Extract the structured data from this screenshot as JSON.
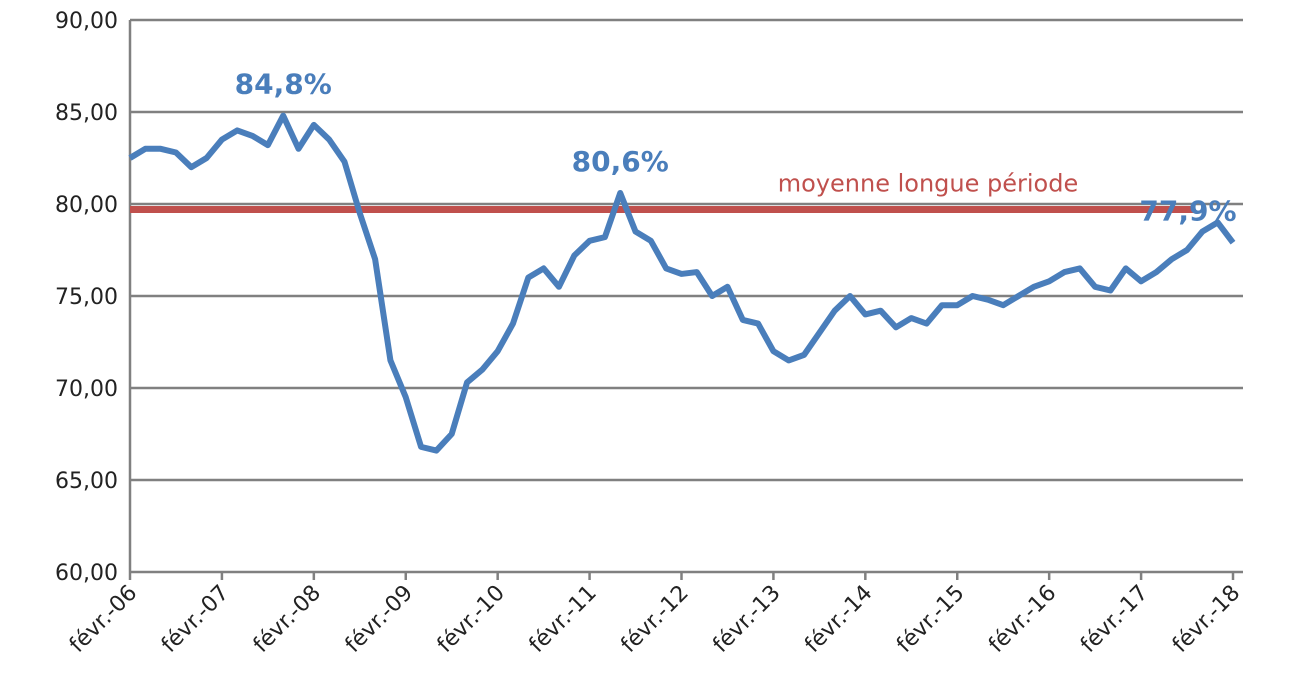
{
  "chart_data": {
    "type": "line",
    "categories": [
      "févr.-06",
      null,
      null,
      null,
      null,
      null,
      "févr.-07",
      null,
      null,
      null,
      null,
      null,
      "févr.-08",
      null,
      null,
      null,
      null,
      null,
      "févr.-09",
      null,
      null,
      null,
      null,
      null,
      "févr.-10",
      null,
      null,
      null,
      null,
      null,
      "févr.-11",
      null,
      null,
      null,
      null,
      null,
      "févr.-12",
      null,
      null,
      null,
      null,
      null,
      "févr.-13",
      null,
      null,
      null,
      null,
      null,
      "févr.-14",
      null,
      null,
      null,
      null,
      null,
      "févr.-15",
      null,
      null,
      null,
      null,
      null,
      "févr.-16",
      null,
      null,
      null,
      null,
      null,
      "févr.-17",
      null,
      null,
      null,
      null,
      null,
      "févr.-18"
    ],
    "series": [
      {
        "color": "#4a7ebb",
        "values": [
          82.5,
          83.0,
          83.0,
          82.8,
          82.0,
          82.5,
          83.5,
          84.0,
          83.7,
          83.2,
          84.8,
          83.0,
          84.3,
          83.5,
          82.3,
          79.5,
          77.0,
          71.5,
          69.5,
          66.8,
          66.6,
          67.5,
          70.3,
          71.0,
          72.0,
          73.5,
          76.0,
          76.5,
          75.5,
          77.2,
          78.0,
          78.2,
          80.6,
          78.5,
          78.0,
          76.5,
          76.2,
          76.3,
          75.0,
          75.5,
          73.7,
          73.5,
          72.0,
          71.5,
          71.8,
          73.0,
          74.2,
          75.0,
          74.0,
          74.2,
          73.3,
          73.8,
          73.5,
          74.5,
          74.5,
          75.0,
          74.8,
          74.5,
          75.0,
          75.5,
          75.8,
          76.3,
          76.5,
          75.5,
          75.3,
          76.5,
          75.8,
          76.3,
          77.0,
          77.5,
          78.5,
          79.0,
          77.9
        ],
        "value_labels": [
          null,
          null,
          null,
          null,
          null,
          null,
          null,
          null,
          null,
          null,
          "84,8%",
          null,
          null,
          null,
          null,
          null,
          null,
          null,
          null,
          null,
          null,
          null,
          null,
          null,
          null,
          null,
          null,
          null,
          null,
          null,
          null,
          null,
          "80,6%",
          null,
          null,
          null,
          null,
          null,
          null,
          null,
          null,
          null,
          null,
          null,
          null,
          null,
          null,
          null,
          null,
          null,
          null,
          null,
          null,
          null,
          null,
          null,
          null,
          null,
          null,
          null,
          null,
          null,
          null,
          null,
          null,
          null,
          null,
          null,
          null,
          null,
          null,
          null,
          "77,9%"
        ]
      }
    ],
    "reference_line": {
      "value": 79.7,
      "label": "moyenne longue période",
      "color": "#c0504d"
    },
    "ylim": [
      60,
      90
    ],
    "yticks": [
      {
        "value": 60,
        "label": "60,00"
      },
      {
        "value": 65,
        "label": "65,00"
      },
      {
        "value": 70,
        "label": "70,00"
      },
      {
        "value": 75,
        "label": "75,00"
      },
      {
        "value": 80,
        "label": "80,00"
      },
      {
        "value": 85,
        "label": "85,00"
      },
      {
        "value": 90,
        "label": "90,00"
      }
    ],
    "grid": true
  }
}
